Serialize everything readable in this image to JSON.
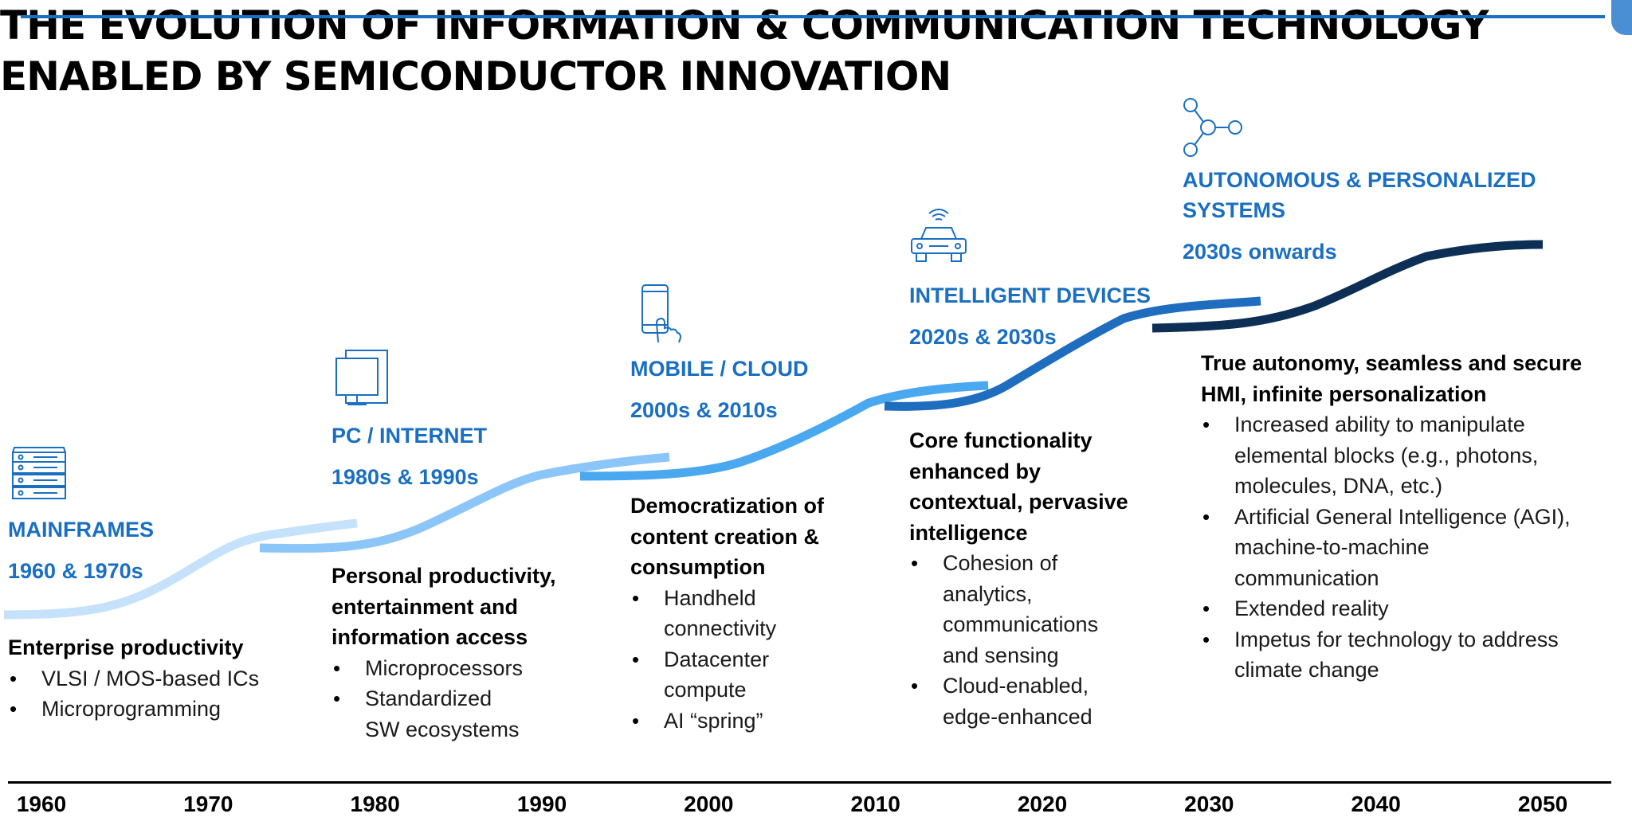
{
  "title": {
    "line1": "THE EVOLUTION OF INFORMATION & COMMUNICATION TECHNOLOGY",
    "line2": "ENABLED BY SEMICONDUCTOR INNOVATION"
  },
  "colors": {
    "accent": "#1a6fc2",
    "curve_mainframes": "#c6e2fb",
    "curve_pc": "#8cc6f8",
    "curve_mobile": "#4aa8f0",
    "curve_intelligent": "#1f6dbf",
    "curve_autonomous": "#0d2f56"
  },
  "eras": [
    {
      "icon": "server-rack-icon",
      "name": "MAINFRAMES",
      "period": "1960 & 1970s",
      "heading": "Enterprise productivity",
      "bullets": [
        "VLSI / MOS-based ICs",
        "Microprogramming"
      ]
    },
    {
      "icon": "desktop-monitor-icon",
      "name": "PC / INTERNET",
      "period": "1980s  & 1990s",
      "heading_lines": [
        "Personal productivity,",
        "entertainment and",
        "information access"
      ],
      "bullets": [
        "Microprocessors",
        "Standardized",
        "SW ecosystems"
      ]
    },
    {
      "icon": "smartphone-touch-icon",
      "name": "MOBILE / CLOUD",
      "period": "2000s & 2010s",
      "heading_lines": [
        "Democratization of",
        "content creation &",
        "consumption"
      ],
      "bullets": [
        "Handheld",
        "connectivity",
        "Datacenter",
        "compute",
        "AI “spring”"
      ]
    },
    {
      "icon": "connected-car-icon",
      "name": "INTELLIGENT DEVICES",
      "period": "2020s & 2030s",
      "heading_lines": [
        "Core functionality",
        "enhanced by",
        "contextual, pervasive",
        "intelligence"
      ],
      "bullets": [
        "Cohesion of",
        "analytics,",
        "communications",
        "and sensing",
        "Cloud-enabled,",
        "edge-enhanced"
      ]
    },
    {
      "icon": "network-nodes-icon",
      "name_lines": [
        "AUTONOMOUS & PERSONALIZED",
        "SYSTEMS"
      ],
      "period": "2030s onwards",
      "heading_lines": [
        "True autonomy, seamless and secure",
        "HMI, infinite personalization"
      ],
      "bullets": [
        "Increased ability to manipulate",
        "elemental blocks (e.g., photons,",
        "molecules, DNA, etc.)",
        "Artificial General Intelligence (AGI),",
        "machine-to-machine",
        "communication",
        "Extended reality",
        "Impetus for technology to address",
        "climate change"
      ]
    }
  ],
  "timeline": {
    "ticks": [
      "1960",
      "1970",
      "1980",
      "1990",
      "2000",
      "2010",
      "2020",
      "2030",
      "2040",
      "2050"
    ]
  }
}
